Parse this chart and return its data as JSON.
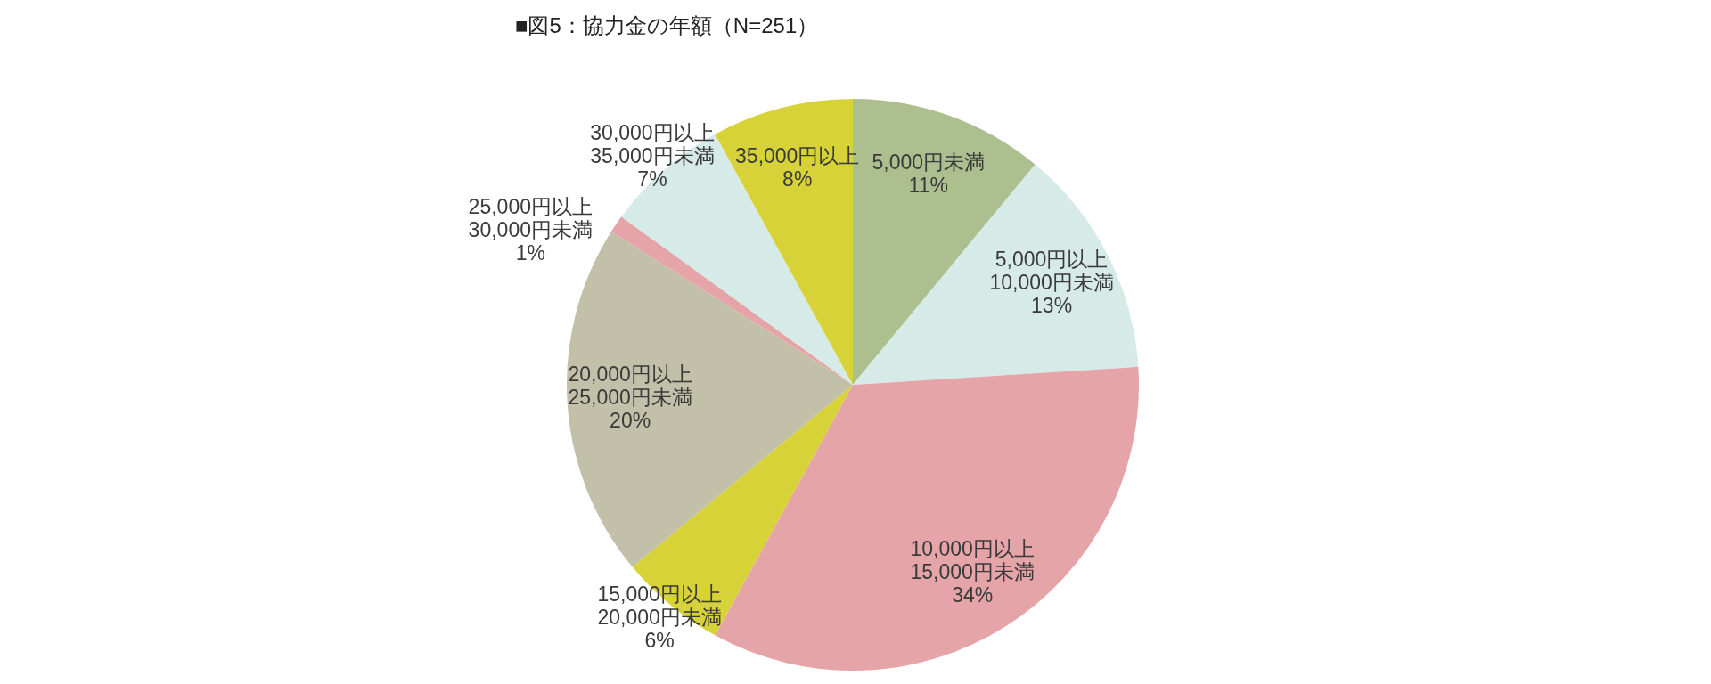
{
  "chart_data": {
    "type": "pie",
    "title": "■図5：協力金の年額（N=251）",
    "categories": [
      "5,000円未満",
      "5,000円以上\n10,000円未満",
      "10,000円以上\n15,000円未満",
      "15,000円以上\n20,000円未満",
      "20,000円以上\n25,000円未満",
      "25,000円以上\n30,000円未満",
      "30,000円以上\n35,000円未満",
      "35,000円以上"
    ],
    "values": [
      11,
      13,
      34,
      6,
      20,
      1,
      7,
      8
    ],
    "value_labels": [
      "11%",
      "13%",
      "34%",
      "6%",
      "20%",
      "1%",
      "7%",
      "8%"
    ],
    "colors": [
      "#adbf8e",
      "#d6eae8",
      "#e5a4a8",
      "#d8d239",
      "#c2c0a8",
      "#e5a4a8",
      "#d6eae8",
      "#d8d239"
    ]
  }
}
